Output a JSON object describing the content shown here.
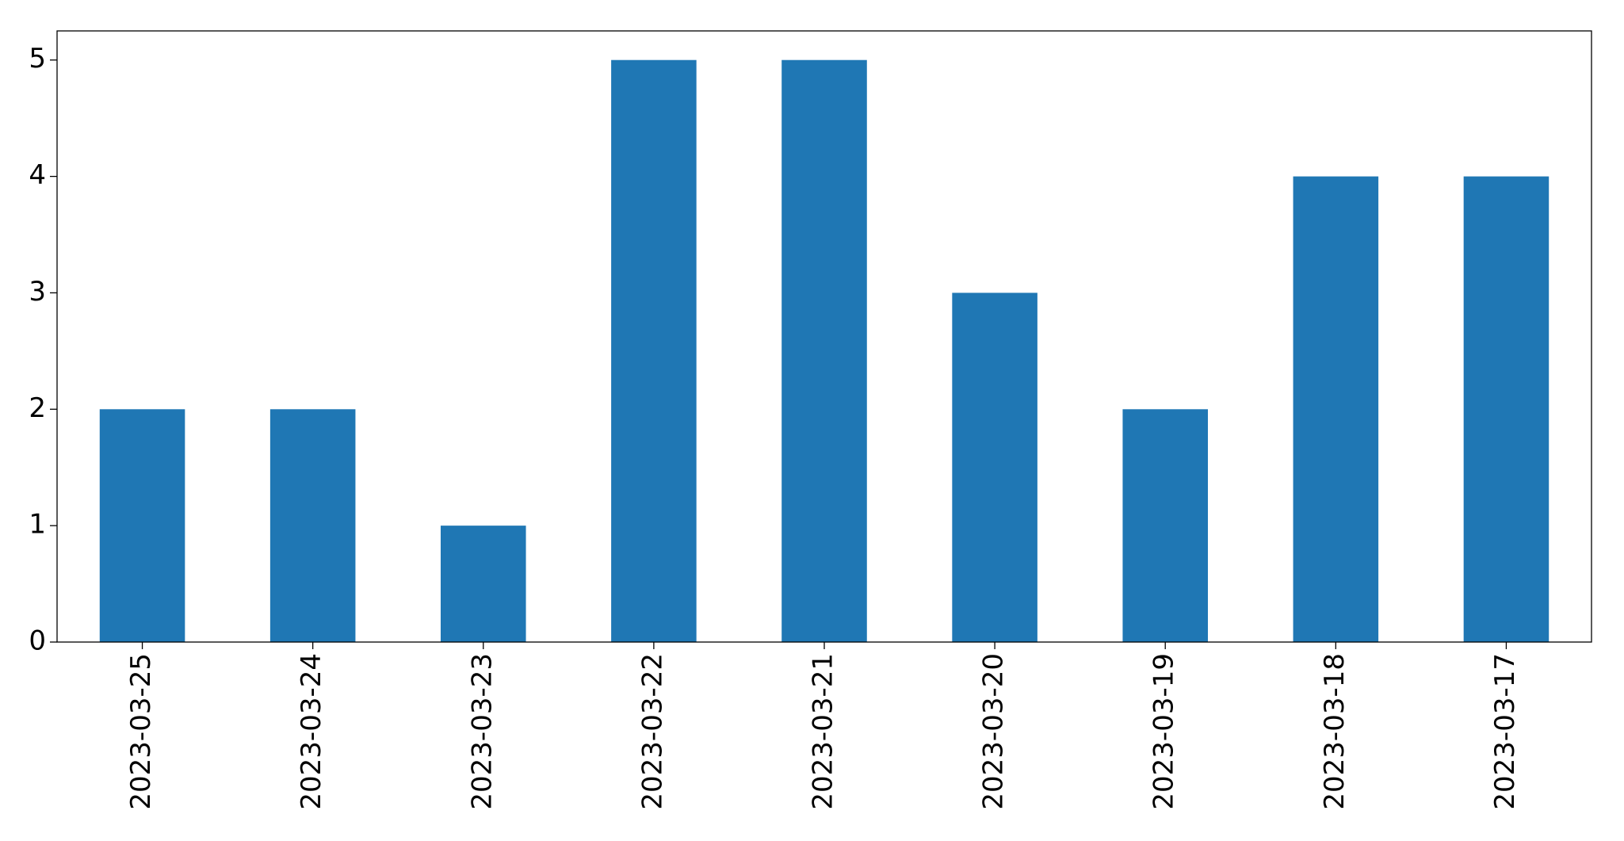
{
  "chart_data": {
    "type": "bar",
    "categories": [
      "2023-03-25",
      "2023-03-24",
      "2023-03-23",
      "2023-03-22",
      "2023-03-21",
      "2023-03-20",
      "2023-03-19",
      "2023-03-18",
      "2023-03-17"
    ],
    "values": [
      2,
      2,
      1,
      5,
      5,
      3,
      2,
      4,
      4
    ],
    "color": "#1f77b4",
    "ylim": [
      0,
      5.25
    ],
    "yticks": [
      0,
      1,
      2,
      3,
      4,
      5
    ],
    "grid": false
  }
}
